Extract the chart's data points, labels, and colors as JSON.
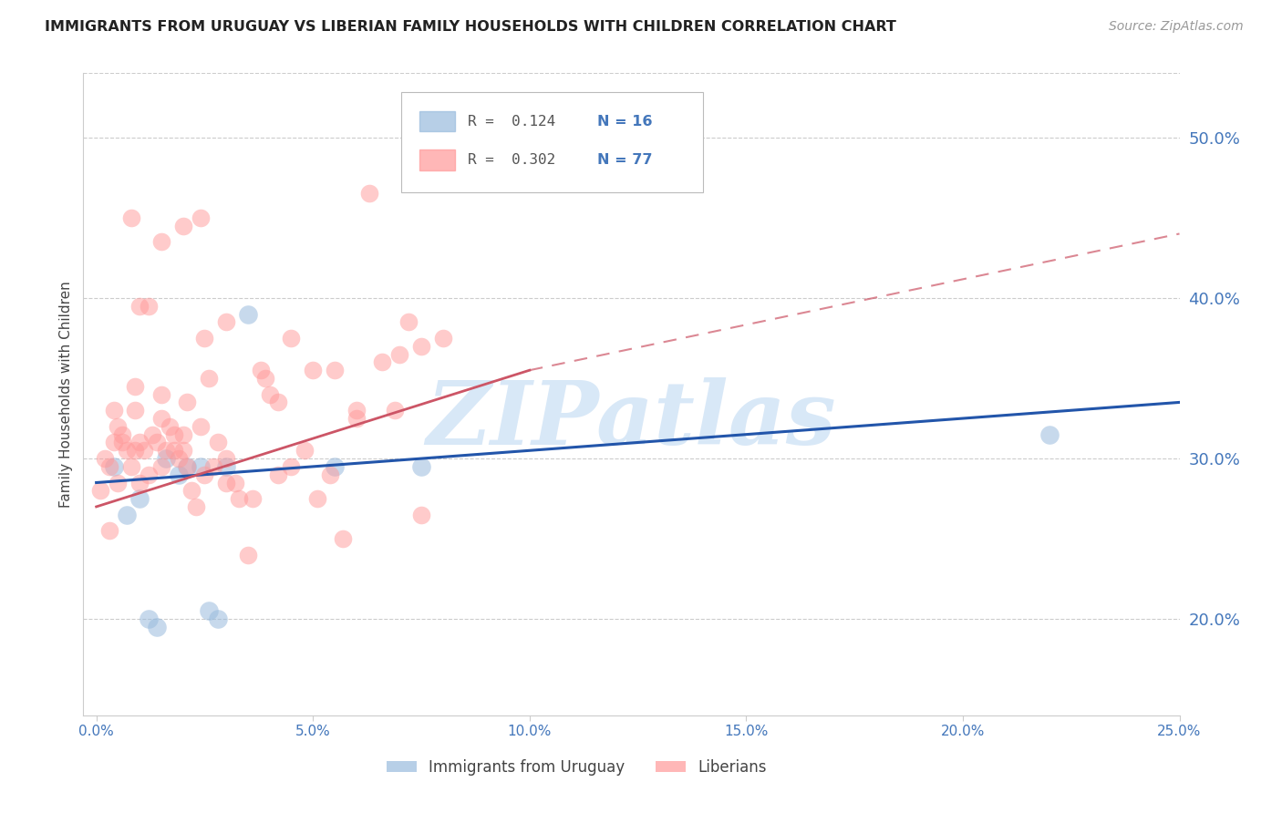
{
  "title": "IMMIGRANTS FROM URUGUAY VS LIBERIAN FAMILY HOUSEHOLDS WITH CHILDREN CORRELATION CHART",
  "source": "Source: ZipAtlas.com",
  "ylabel": "Family Households with Children",
  "x_tick_labels": [
    "0.0%",
    "5.0%",
    "10.0%",
    "15.0%",
    "20.0%",
    "25.0%"
  ],
  "x_tick_values": [
    0.0,
    5.0,
    10.0,
    15.0,
    20.0,
    25.0
  ],
  "y_tick_labels_right": [
    "20.0%",
    "30.0%",
    "40.0%",
    "50.0%"
  ],
  "y_tick_values_right": [
    20.0,
    30.0,
    40.0,
    50.0
  ],
  "xlim": [
    -0.3,
    25.0
  ],
  "ylim": [
    14.0,
    54.0
  ],
  "legend_r1": "R =  0.124",
  "legend_n1": "N = 16",
  "legend_r2": "R =  0.302",
  "legend_n2": "N = 77",
  "legend_label1": "Immigrants from Uruguay",
  "legend_label2": "Liberians",
  "blue_color": "#99BBDD",
  "pink_color": "#FF9999",
  "trend_blue": "#2255AA",
  "trend_pink": "#CC5566",
  "watermark": "ZIPatlas",
  "watermark_color": "#AACCEE",
  "title_color": "#222222",
  "axis_label_color": "#444444",
  "tick_color_right": "#4477BB",
  "grid_color": "#CCCCCC",
  "blue_scatter_x": [
    0.4,
    0.7,
    1.0,
    1.2,
    1.4,
    1.6,
    1.9,
    2.1,
    2.4,
    2.6,
    2.8,
    3.0,
    3.5,
    5.5,
    7.5,
    22.0
  ],
  "blue_scatter_y": [
    29.5,
    26.5,
    27.5,
    20.0,
    19.5,
    30.0,
    29.0,
    29.5,
    29.5,
    20.5,
    20.0,
    29.5,
    39.0,
    29.5,
    29.5,
    31.5
  ],
  "pink_scatter_x": [
    0.1,
    0.2,
    0.3,
    0.4,
    0.4,
    0.5,
    0.5,
    0.6,
    0.7,
    0.8,
    0.9,
    0.9,
    1.0,
    1.0,
    1.1,
    1.2,
    1.3,
    1.4,
    1.5,
    1.5,
    1.6,
    1.7,
    1.8,
    1.9,
    2.0,
    2.0,
    2.1,
    2.2,
    2.3,
    2.4,
    2.5,
    2.5,
    2.6,
    2.8,
    3.0,
    3.0,
    3.2,
    3.5,
    3.8,
    4.0,
    4.2,
    4.5,
    5.0,
    5.5,
    6.0,
    7.0,
    7.5,
    8.0,
    0.3,
    0.6,
    0.9,
    1.2,
    1.5,
    1.8,
    2.1,
    2.4,
    2.7,
    3.0,
    3.3,
    3.6,
    3.9,
    4.2,
    4.5,
    4.8,
    5.1,
    5.4,
    5.7,
    6.0,
    6.3,
    6.6,
    6.9,
    7.2,
    7.5,
    0.8,
    1.0,
    1.5,
    2.0
  ],
  "pink_scatter_y": [
    28.0,
    30.0,
    29.5,
    31.0,
    33.0,
    32.0,
    28.5,
    31.5,
    30.5,
    29.5,
    30.5,
    33.0,
    31.0,
    28.5,
    30.5,
    29.0,
    31.5,
    31.0,
    34.0,
    29.5,
    30.5,
    32.0,
    31.5,
    30.0,
    31.5,
    30.5,
    29.5,
    28.0,
    27.0,
    32.0,
    37.5,
    29.0,
    35.0,
    31.0,
    30.0,
    28.5,
    28.5,
    24.0,
    35.5,
    34.0,
    33.5,
    29.5,
    35.5,
    35.5,
    33.0,
    36.5,
    37.0,
    37.5,
    25.5,
    31.0,
    34.5,
    39.5,
    32.5,
    30.5,
    33.5,
    45.0,
    29.5,
    38.5,
    27.5,
    27.5,
    35.0,
    29.0,
    37.5,
    30.5,
    27.5,
    29.0,
    25.0,
    32.5,
    46.5,
    36.0,
    33.0,
    38.5,
    26.5,
    45.0,
    39.5,
    43.5,
    44.5
  ],
  "blue_line_x0": 0.0,
  "blue_line_x1": 25.0,
  "blue_line_y0": 28.5,
  "blue_line_y1": 33.5,
  "pink_line_x0": 0.0,
  "pink_line_x1": 10.0,
  "pink_line_y0": 27.0,
  "pink_line_y1": 35.5,
  "pink_dash_x0": 10.0,
  "pink_dash_x1": 25.0,
  "pink_dash_y0": 35.5,
  "pink_dash_y1": 44.0
}
